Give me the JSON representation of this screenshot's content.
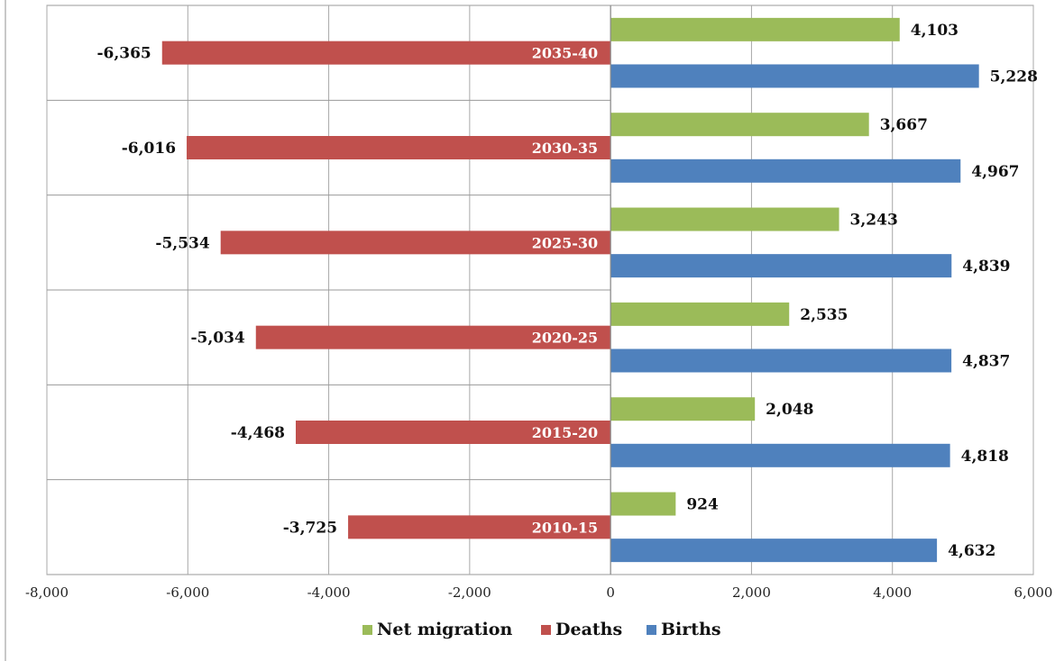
{
  "chart_data": {
    "type": "bar",
    "orientation": "horizontal",
    "categories": [
      "2010-15",
      "2015-20",
      "2020-25",
      "2025-30",
      "2030-35",
      "2035-40"
    ],
    "series": [
      {
        "name": "Net migration",
        "color": "#9bbb59",
        "values": [
          924,
          2048,
          2535,
          3243,
          3667,
          4103
        ],
        "labels": [
          "924",
          "2,048",
          "2,535",
          "3,243",
          "3,667",
          "4,103"
        ]
      },
      {
        "name": "Deaths",
        "color": "#c0504d",
        "values": [
          -3725,
          -4468,
          -5034,
          -5534,
          -6016,
          -6365
        ],
        "labels": [
          "-3,725",
          "-4,468",
          "-5,034",
          "-5,534",
          "-6,016",
          "-6,365"
        ]
      },
      {
        "name": "Births",
        "color": "#4f81bd",
        "values": [
          4632,
          4818,
          4837,
          4839,
          4967,
          5228
        ],
        "labels": [
          "4,632",
          "4,818",
          "4,837",
          "4,839",
          "4,967",
          "5,228"
        ]
      }
    ],
    "xlim": [
      -8000,
      6000
    ],
    "x_ticks": [
      -8000,
      -6000,
      -4000,
      -2000,
      0,
      2000,
      4000,
      6000
    ],
    "x_tick_labels": [
      "-8,000",
      "-6,000",
      "-4,000",
      "-2,000",
      "0",
      "2,000",
      "4,000",
      "6,000"
    ],
    "grid": true,
    "legend_position": "bottom",
    "title": "",
    "xlabel": "",
    "ylabel": ""
  }
}
